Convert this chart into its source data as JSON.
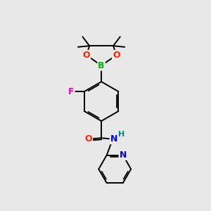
{
  "bg_color": "#e8e8e8",
  "bond_color": "#000000",
  "atom_colors": {
    "B": "#00bb00",
    "O": "#ff2200",
    "F": "#ee00bb",
    "N": "#0000ee",
    "NH": "#008888",
    "C": "#000000"
  },
  "bond_width": 1.4,
  "font_size_atom": 10,
  "scale": 1.0
}
